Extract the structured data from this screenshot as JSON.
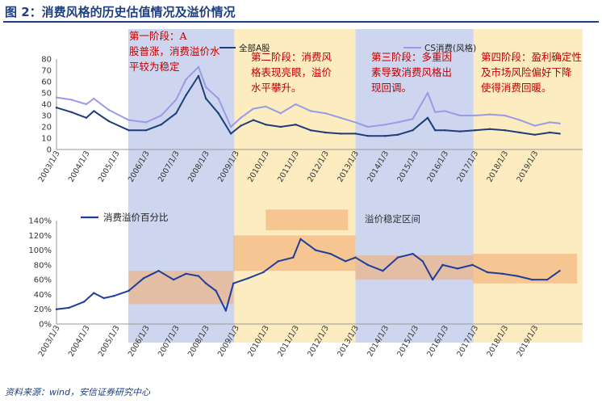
{
  "figure": {
    "title": "图 2：消费风格的历史估值情况及溢价情况",
    "source": "资料来源：wind，安信证券研究中心"
  },
  "chart_data": [
    {
      "type": "line",
      "xlabel": "",
      "ylabel": "",
      "ylim": [
        0,
        80
      ],
      "yticks": [
        "0",
        "10",
        "20",
        "30",
        "40",
        "50",
        "60",
        "70",
        "80"
      ],
      "x_ticks": [
        "2003/1/3",
        "2004/1/3",
        "2005/1/3",
        "2006/1/3",
        "2007/1/3",
        "2008/1/3",
        "2009/1/3",
        "2010/1/3",
        "2011/1/3",
        "2012/1/3",
        "2013/1/3",
        "2014/1/3",
        "2015/1/3",
        "2016/1/3",
        "2017/1/3",
        "2018/1/3",
        "2019/1/3"
      ],
      "legend_position": "top",
      "series": [
        {
          "name": "全部A股",
          "color": "#1f3d7a",
          "x": [
            "2003-01",
            "2003-07",
            "2004-01",
            "2004-04",
            "2004-10",
            "2005-06",
            "2006-01",
            "2006-07",
            "2007-01",
            "2007-05",
            "2007-10",
            "2008-01",
            "2008-06",
            "2008-11",
            "2009-03",
            "2009-08",
            "2010-01",
            "2010-07",
            "2011-01",
            "2011-07",
            "2012-01",
            "2012-07",
            "2013-01",
            "2013-06",
            "2014-01",
            "2014-06",
            "2014-12",
            "2015-06",
            "2015-09",
            "2016-01",
            "2016-07",
            "2017-01",
            "2017-07",
            "2018-01",
            "2018-07",
            "2019-01",
            "2019-07",
            "2019-11"
          ],
          "values": [
            37,
            33,
            28,
            34,
            25,
            17,
            17,
            22,
            32,
            48,
            65,
            45,
            32,
            14,
            21,
            26,
            22,
            20,
            22,
            17,
            15,
            14,
            14,
            12,
            12,
            13,
            17,
            28,
            17,
            17,
            16,
            17,
            18,
            17,
            15,
            13,
            15,
            14
          ]
        },
        {
          "name": "CS消费(风格)",
          "color": "#9a9ae6",
          "x": [
            "2003-01",
            "2003-07",
            "2004-01",
            "2004-04",
            "2004-10",
            "2005-06",
            "2006-01",
            "2006-07",
            "2007-01",
            "2007-05",
            "2007-10",
            "2008-01",
            "2008-06",
            "2008-11",
            "2009-03",
            "2009-08",
            "2010-01",
            "2010-07",
            "2011-01",
            "2011-07",
            "2012-01",
            "2012-07",
            "2013-01",
            "2013-06",
            "2014-01",
            "2014-06",
            "2014-12",
            "2015-06",
            "2015-09",
            "2016-01",
            "2016-07",
            "2017-01",
            "2017-07",
            "2018-01",
            "2018-07",
            "2019-01",
            "2019-07",
            "2019-11"
          ],
          "values": [
            46,
            44,
            40,
            45,
            35,
            26,
            24,
            30,
            44,
            62,
            73,
            55,
            45,
            20,
            28,
            36,
            38,
            32,
            40,
            34,
            32,
            28,
            24,
            20,
            22,
            24,
            27,
            50,
            33,
            34,
            30,
            30,
            31,
            30,
            26,
            21,
            24,
            23
          ]
        }
      ],
      "annotations": [
        "第一阶段：A股普涨，消费溢价水平较为稳定",
        "第二阶段：消费风格表现亮眼，溢价水平攀升。",
        "第三阶段：多重因素导致消费风格出现回调。",
        "第四阶段：盈利确定性及市场风险偏好下降使得消费回暖。"
      ]
    },
    {
      "type": "line",
      "xlabel": "",
      "ylabel": "",
      "ylim": [
        0,
        1.4
      ],
      "yticks": [
        "0%",
        "20%",
        "40%",
        "60%",
        "80%",
        "100%",
        "120%",
        "140%"
      ],
      "x_ticks": [
        "2003/1/3",
        "2004/1/3",
        "2005/1/3",
        "2006/1/3",
        "2007/1/3",
        "2008/1/3",
        "2009/1/3",
        "2010/1/3",
        "2011/1/3",
        "2012/1/3",
        "2013/1/3",
        "2014/1/3",
        "2015/1/3",
        "2016/1/3",
        "2017/1/3",
        "2018/1/3",
        "2019/1/3"
      ],
      "legend_position": "top-left",
      "series": [
        {
          "name": "消费溢价百分比",
          "color": "#1f3d9a",
          "x": [
            "2003-01",
            "2003-06",
            "2003-12",
            "2004-04",
            "2004-08",
            "2004-12",
            "2005-06",
            "2005-12",
            "2006-06",
            "2006-12",
            "2007-05",
            "2007-10",
            "2008-01",
            "2008-05",
            "2008-09",
            "2008-12",
            "2009-06",
            "2009-12",
            "2010-06",
            "2010-12",
            "2011-03",
            "2011-09",
            "2012-03",
            "2012-09",
            "2013-01",
            "2013-06",
            "2013-12",
            "2014-06",
            "2014-12",
            "2015-04",
            "2015-08",
            "2015-12",
            "2016-06",
            "2016-12",
            "2017-06",
            "2017-12",
            "2018-06",
            "2018-12",
            "2019-06",
            "2019-11"
          ],
          "values": [
            0.2,
            0.22,
            0.3,
            0.42,
            0.35,
            0.38,
            0.45,
            0.62,
            0.72,
            0.6,
            0.68,
            0.65,
            0.55,
            0.45,
            0.18,
            0.55,
            0.62,
            0.7,
            0.85,
            0.9,
            1.15,
            1.0,
            0.95,
            0.85,
            0.9,
            0.8,
            0.72,
            0.9,
            0.95,
            0.85,
            0.6,
            0.8,
            0.75,
            0.8,
            0.7,
            0.68,
            0.65,
            0.6,
            0.6,
            0.72
          ]
        }
      ],
      "bands": [
        {
          "x_start": "2005-06",
          "x_end": "2008-12",
          "y_low": 0.27,
          "y_high": 0.72
        },
        {
          "x_start": "2008-12",
          "x_end": "2013-01",
          "y_low": 0.72,
          "y_high": 1.2
        },
        {
          "x_start": "2010-01",
          "x_end": "2012-10",
          "y_low": 1.27,
          "y_high": 1.55
        },
        {
          "x_start": "2013-01",
          "x_end": "2016-12",
          "y_low": 0.6,
          "y_high": 0.93
        },
        {
          "x_start": "2016-12",
          "x_end": "2020-06",
          "y_low": 0.55,
          "y_high": 0.95
        }
      ],
      "annotations": [
        "溢价稳定区间"
      ]
    }
  ]
}
